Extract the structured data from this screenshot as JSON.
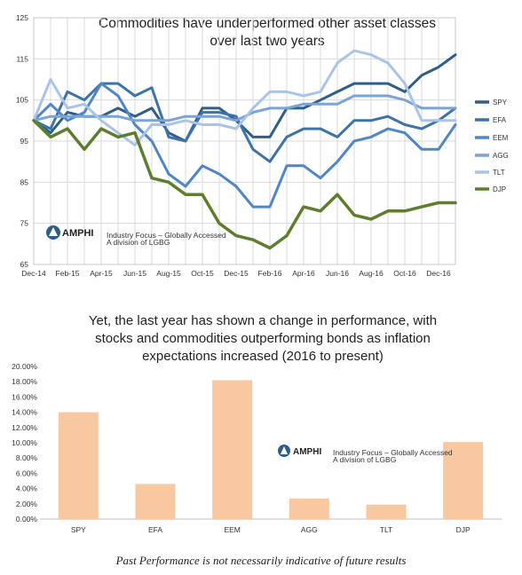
{
  "footer": "Past Performance is not necessarily indicative of future results",
  "logo": {
    "text": "AMPHI",
    "tag1": "Industry Focus – Globally Accessed",
    "tag2": "A division of LGBG"
  },
  "chart_data": [
    {
      "type": "line",
      "title": [
        "Commodities have underperformed other asset classes",
        "over last two years"
      ],
      "x": [
        "Dec-14",
        "Jan-15",
        "Feb-15",
        "Mar-15",
        "Apr-15",
        "May-15",
        "Jun-15",
        "Jul-15",
        "Aug-15",
        "Sep-15",
        "Oct-15",
        "Nov-15",
        "Dec-15",
        "Jan-16",
        "Feb-16",
        "Mar-16",
        "Apr-16",
        "May-16",
        "Jun-16",
        "Jul-16",
        "Aug-16",
        "Sep-16",
        "Oct-16",
        "Nov-16",
        "Dec-16",
        "Jan-17"
      ],
      "xticks": [
        "Dec-14",
        "Feb-15",
        "Apr-15",
        "Jun-15",
        "Aug-15",
        "Oct-15",
        "Dec-15",
        "Feb-16",
        "Apr-16",
        "Jun-16",
        "Aug-16",
        "Oct-16",
        "Dec-16"
      ],
      "ylim": [
        65,
        125
      ],
      "yticks": [
        65,
        75,
        85,
        95,
        105,
        115,
        125
      ],
      "grid": true,
      "legend_position": "right",
      "series": [
        {
          "name": "SPY",
          "color": "#2e5f8a",
          "values": [
            100,
            97,
            102,
            101,
            101,
            103,
            101,
            103,
            97,
            95,
            103,
            103,
            100,
            96,
            96,
            103,
            103,
            105,
            107,
            109,
            109,
            109,
            107,
            111,
            113,
            116
          ]
        },
        {
          "name": "EFA",
          "color": "#3c73a8",
          "values": [
            100,
            98,
            107,
            105,
            109,
            109,
            106,
            108,
            96,
            95,
            102,
            102,
            101,
            93,
            90,
            96,
            98,
            98,
            96,
            100,
            100,
            101,
            99,
            98,
            100,
            103
          ]
        },
        {
          "name": "EEM",
          "color": "#4f86c6",
          "values": [
            100,
            104,
            100,
            102,
            109,
            106,
            99,
            95,
            87,
            84,
            89,
            87,
            84,
            79,
            79,
            89,
            89,
            86,
            90,
            95,
            96,
            98,
            97,
            93,
            93,
            99
          ]
        },
        {
          "name": "AGG",
          "color": "#7ba3d6",
          "values": [
            100,
            101,
            101,
            101,
            101,
            101,
            100,
            100,
            100,
            101,
            101,
            101,
            100,
            102,
            103,
            103,
            104,
            104,
            104,
            106,
            106,
            106,
            105,
            103,
            103,
            103
          ]
        },
        {
          "name": "TLT",
          "color": "#a9c4e8",
          "values": [
            100,
            110,
            103,
            104,
            100,
            97,
            94,
            99,
            99,
            100,
            99,
            99,
            98,
            103,
            107,
            107,
            106,
            107,
            114,
            117,
            116,
            114,
            109,
            100,
            100,
            100
          ]
        },
        {
          "name": "DJP",
          "color": "#5e7d2d",
          "values": [
            100,
            96,
            98,
            93,
            98,
            96,
            97,
            86,
            85,
            82,
            82,
            75,
            72,
            71,
            69,
            72,
            79,
            78,
            82,
            77,
            76,
            78,
            78,
            79,
            80,
            80
          ]
        }
      ]
    },
    {
      "type": "bar",
      "title": [
        "Yet, the last year has shown a change in performance, with",
        "stocks and commodities outperforming bonds as inflation",
        "expectations increased (2016 to present)"
      ],
      "categories": [
        "SPY",
        "EFA",
        "EEM",
        "AGG",
        "TLT",
        "DJP"
      ],
      "values": [
        14.0,
        4.6,
        18.2,
        2.7,
        1.9,
        10.1
      ],
      "ylim": [
        0,
        20
      ],
      "yticks": [
        "0.00%",
        "2.00%",
        "4.00%",
        "6.00%",
        "8.00%",
        "10.00%",
        "12.00%",
        "14.00%",
        "16.00%",
        "18.00%",
        "20.00%"
      ],
      "color": "#f8c9a0",
      "grid": false
    }
  ]
}
